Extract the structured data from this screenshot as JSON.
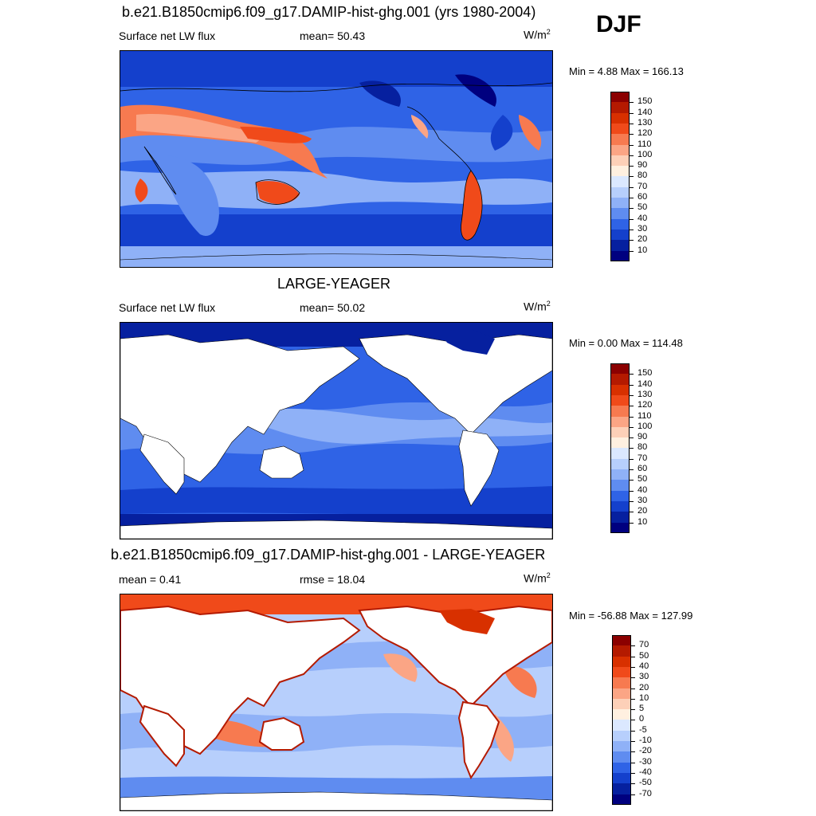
{
  "season": "DJF",
  "panels": [
    {
      "title": "b.e21.B1850cmip6.f09_g17.DAMIP-hist-ghg.001 (yrs 1980-2004)",
      "left_label": "Surface net LW flux",
      "center_label": "mean=  50.43",
      "units_base": "W/m",
      "units_exp": "2",
      "minmax": "Min =   4.88 Max = 166.13",
      "colorbar": {
        "labels": [
          "150",
          "140",
          "130",
          "120",
          "110",
          "100",
          "90",
          "80",
          "70",
          "60",
          "50",
          "40",
          "30",
          "20",
          "10"
        ],
        "colors": [
          "#8b0000",
          "#b41a00",
          "#d83000",
          "#f04a1a",
          "#f77a50",
          "#fba585",
          "#fdd0b8",
          "#fff0e0",
          "#dbe8ff",
          "#b7cffc",
          "#8fb1f7",
          "#5f8cf0",
          "#2f63e6",
          "#1440cc",
          "#06209f",
          "#00007f"
        ]
      },
      "land_masked": false
    },
    {
      "title": "LARGE-YEAGER",
      "left_label": "Surface net LW flux",
      "center_label": "mean=  50.02",
      "units_base": "W/m",
      "units_exp": "2",
      "minmax": "Min =   0.00 Max = 114.48",
      "colorbar": {
        "labels": [
          "150",
          "140",
          "130",
          "120",
          "110",
          "100",
          "90",
          "80",
          "70",
          "60",
          "50",
          "40",
          "30",
          "20",
          "10"
        ],
        "colors": [
          "#8b0000",
          "#b41a00",
          "#d83000",
          "#f04a1a",
          "#f77a50",
          "#fba585",
          "#fdd0b8",
          "#fff0e0",
          "#dbe8ff",
          "#b7cffc",
          "#8fb1f7",
          "#5f8cf0",
          "#2f63e6",
          "#1440cc",
          "#06209f",
          "#00007f"
        ]
      },
      "land_masked": true
    },
    {
      "title": "b.e21.B1850cmip6.f09_g17.DAMIP-hist-ghg.001 - LARGE-YEAGER",
      "left_label": "mean =   0.41",
      "center_label": "rmse =  18.04",
      "units_base": "W/m",
      "units_exp": "2",
      "minmax": "Min = -56.88 Max = 127.99",
      "colorbar": {
        "labels": [
          "70",
          "50",
          "40",
          "30",
          "20",
          "10",
          "5",
          "0",
          "-5",
          "-10",
          "-20",
          "-30",
          "-40",
          "-50",
          "-70"
        ],
        "colors": [
          "#8b0000",
          "#b41a00",
          "#d83000",
          "#f04a1a",
          "#f77a50",
          "#fba585",
          "#fdd0b8",
          "#fff0e0",
          "#dbe8ff",
          "#b7cffc",
          "#8fb1f7",
          "#5f8cf0",
          "#2f63e6",
          "#1440cc",
          "#06209f",
          "#00007f"
        ]
      },
      "land_masked": true
    }
  ]
}
